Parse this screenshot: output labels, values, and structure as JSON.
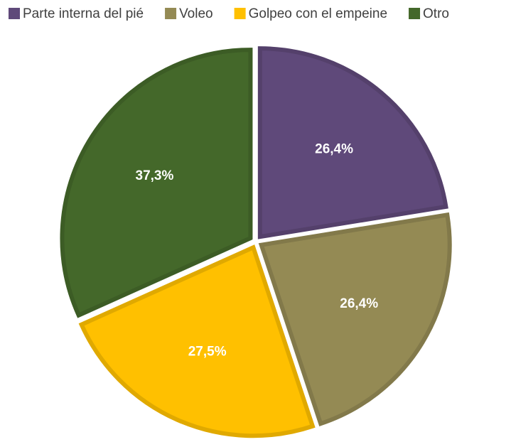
{
  "chart_data": {
    "type": "pie",
    "categories": [
      "Parte interna del pié",
      "Voleo",
      "Golpeo con el empeine",
      "Otro"
    ],
    "values": [
      26.4,
      26.4,
      27.5,
      37.3
    ],
    "value_labels": [
      "26,4%",
      "26,4%",
      "27,5%",
      "37,3%"
    ],
    "colors": [
      "#5f497a",
      "#948a54",
      "#ffc000",
      "#44682a"
    ],
    "legend": "top"
  }
}
